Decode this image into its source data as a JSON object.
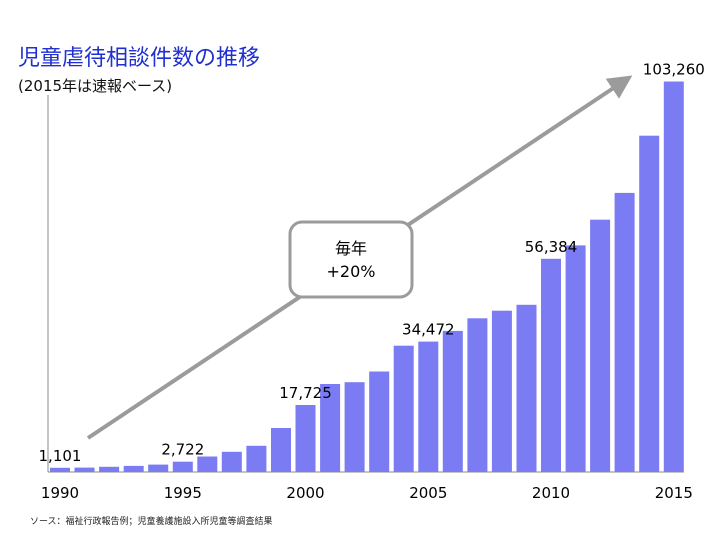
{
  "title": "児童虐待相談件数の推移",
  "subtitle": "(2015年は速報ベース)",
  "source": "ソース：福祉行政報告例；児童養護施設入所児童等調査結果",
  "annotation": {
    "line1": "毎年",
    "line2": "+20%"
  },
  "colors": {
    "bar": "#7b7bf4",
    "title": "#1f2fd0",
    "arrow": "#9b9b9b",
    "axis": "#888888"
  },
  "chart_data": {
    "type": "bar",
    "categories": [
      1990,
      1991,
      1992,
      1993,
      1994,
      1995,
      1996,
      1997,
      1998,
      1999,
      2000,
      2001,
      2002,
      2003,
      2004,
      2005,
      2006,
      2007,
      2008,
      2009,
      2010,
      2011,
      2012,
      2013,
      2014,
      2015
    ],
    "values": [
      1101,
      1171,
      1372,
      1611,
      1961,
      2722,
      4102,
      5352,
      6932,
      11631,
      17725,
      23274,
      23738,
      26569,
      33408,
      34472,
      37323,
      40639,
      42664,
      44211,
      56384,
      59919,
      66701,
      73802,
      88931,
      103260
    ],
    "x_tick_labels": [
      "1990",
      "1995",
      "2000",
      "2005",
      "2010",
      "2015"
    ],
    "data_labels": [
      {
        "year": 1990,
        "text": "1,101"
      },
      {
        "year": 1995,
        "text": "2,722"
      },
      {
        "year": 2000,
        "text": "17,725"
      },
      {
        "year": 2005,
        "text": "34,472"
      },
      {
        "year": 2010,
        "text": "56,384"
      },
      {
        "year": 2015,
        "text": "103,260"
      }
    ],
    "ylim": [
      0,
      110000
    ],
    "grid": false,
    "legend": "none"
  }
}
